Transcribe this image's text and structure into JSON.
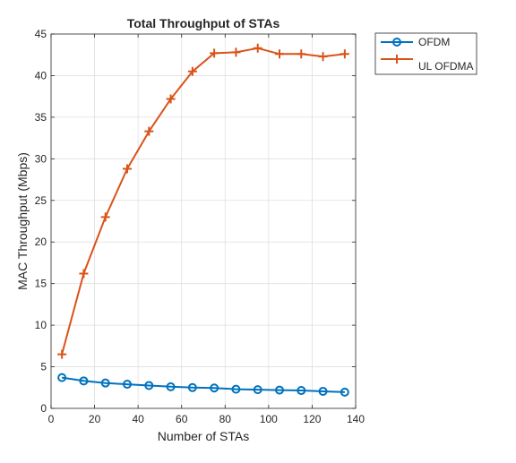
{
  "chart_data": {
    "type": "line",
    "title": "Total Throughput of STAs",
    "xlabel": "Number of STAs",
    "ylabel": "MAC Throughput (Mbps)",
    "xlim": [
      0,
      140
    ],
    "ylim": [
      0,
      45
    ],
    "xticks": [
      0,
      20,
      40,
      60,
      80,
      100,
      120,
      140
    ],
    "yticks": [
      0,
      5,
      10,
      15,
      20,
      25,
      30,
      35,
      40,
      45
    ],
    "grid": true,
    "legend": "outside-top-right",
    "x": [
      5,
      15,
      25,
      35,
      45,
      55,
      65,
      75,
      85,
      95,
      105,
      115,
      125,
      135
    ],
    "series": [
      {
        "name": "OFDM",
        "marker": "circle",
        "color": "#0072BD",
        "values": [
          3.7,
          3.3,
          3.05,
          2.9,
          2.75,
          2.6,
          2.5,
          2.45,
          2.3,
          2.25,
          2.2,
          2.15,
          2.05,
          1.95
        ]
      },
      {
        "name": "UL OFDMA",
        "marker": "plus",
        "color": "#D95319",
        "values": [
          6.5,
          16.2,
          23.0,
          28.8,
          33.3,
          37.2,
          40.5,
          42.7,
          42.8,
          43.3,
          42.6,
          42.6,
          42.3,
          42.6
        ]
      }
    ]
  }
}
